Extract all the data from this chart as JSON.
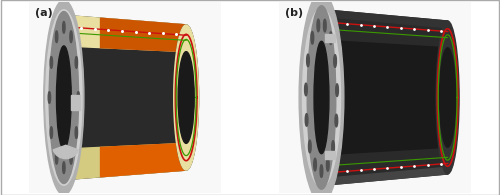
{
  "figsize": [
    5.0,
    1.95
  ],
  "dpi": 100,
  "bg_color": "#ffffff",
  "label_a": "(a)",
  "label_b": "(b)",
  "label_fontsize": 8,
  "label_color": "#222222",
  "colors": {
    "dark_rubber": "#2a2a2a",
    "dark_rubber2": "#1a1a1a",
    "rubber_mid": "#333333",
    "rubber_light": "#444444",
    "cream": "#e8dfa0",
    "cream2": "#d4ca80",
    "orange": "#cc5500",
    "orange2": "#e06000",
    "red_line": "#cc1111",
    "green_line": "#3a9900",
    "flange_light": "#d0d0d0",
    "flange_mid": "#b0b0b0",
    "flange_dark": "#888888",
    "flange_edge": "#606060",
    "bolt_hole": "#505050",
    "connector": "#c0c0c0",
    "bg": "#f8f8f8",
    "white_dot": "#e0e0e0"
  }
}
